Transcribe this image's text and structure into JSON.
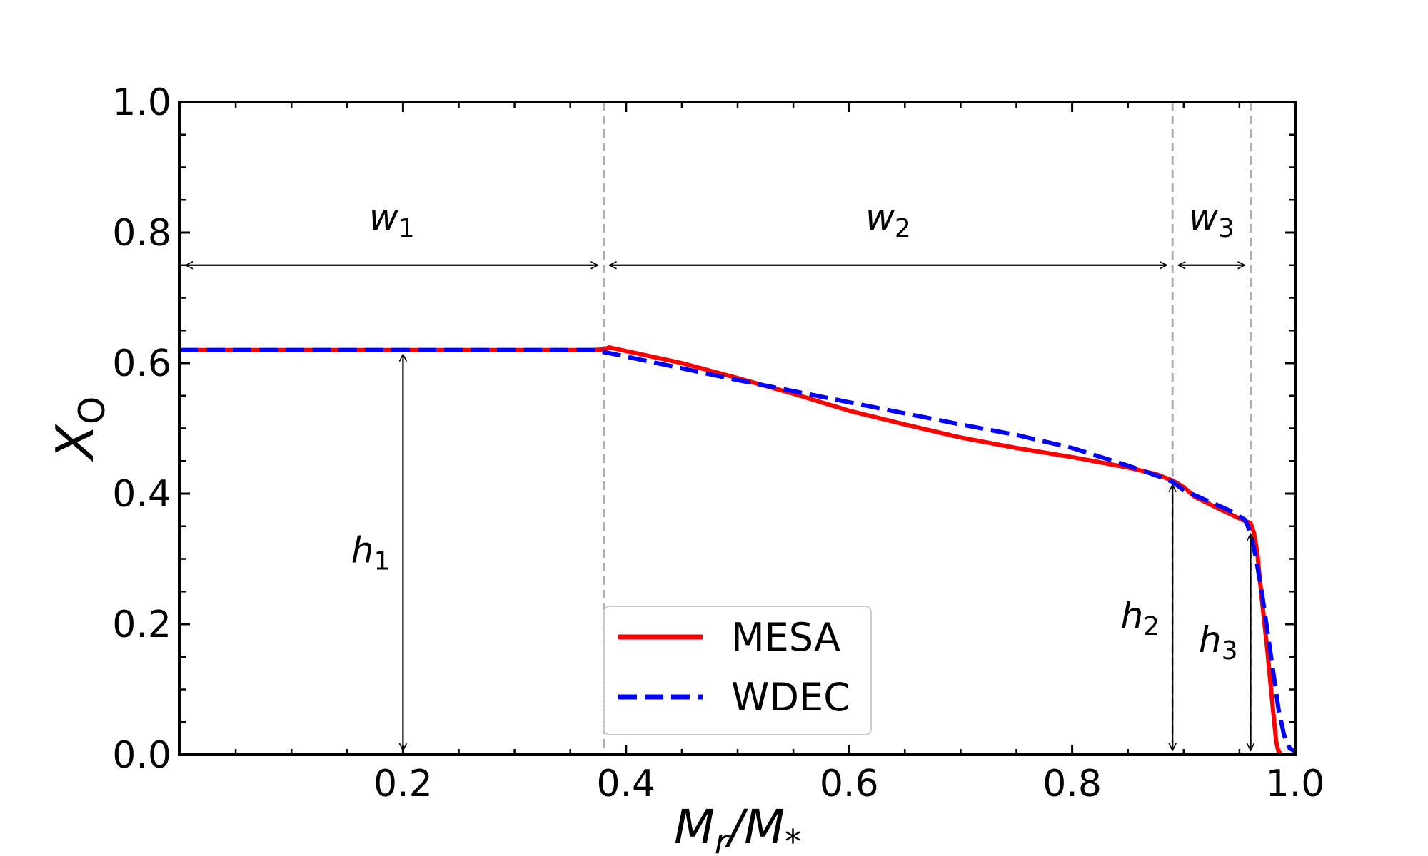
{
  "chart_data": {
    "type": "line",
    "xlabel": {
      "main": "M",
      "sub1": "r",
      "slash": "/M",
      "sub2": "*"
    },
    "ylabel": {
      "main": "X",
      "sub": "O"
    },
    "xlim": [
      0.0,
      1.0
    ],
    "ylim": [
      0.0,
      1.0
    ],
    "x_ticks": [
      0.2,
      0.4,
      0.6,
      0.8,
      1.0
    ],
    "x_tick_labels": [
      "0.2",
      "0.4",
      "0.6",
      "0.8",
      "1.0"
    ],
    "y_ticks": [
      0.0,
      0.2,
      0.4,
      0.6,
      0.8,
      1.0
    ],
    "y_tick_labels": [
      "0.0",
      "0.2",
      "0.4",
      "0.6",
      "0.8",
      "1.0"
    ],
    "grid": false,
    "series": [
      {
        "name": "MESA",
        "color": "#ff0000",
        "style": "solid",
        "x": [
          0.0,
          0.1,
          0.2,
          0.3,
          0.37,
          0.38,
          0.385,
          0.45,
          0.5,
          0.55,
          0.6,
          0.65,
          0.7,
          0.75,
          0.8,
          0.85,
          0.875,
          0.89,
          0.9,
          0.91,
          0.93,
          0.95,
          0.955,
          0.96,
          0.963,
          0.966,
          0.97,
          0.975,
          0.98,
          0.983,
          0.985,
          0.988,
          0.992,
          1.0
        ],
        "y": [
          0.62,
          0.62,
          0.62,
          0.62,
          0.62,
          0.621,
          0.624,
          0.6,
          0.577,
          0.553,
          0.527,
          0.506,
          0.486,
          0.47,
          0.456,
          0.44,
          0.43,
          0.42,
          0.41,
          0.395,
          0.378,
          0.362,
          0.358,
          0.355,
          0.34,
          0.31,
          0.24,
          0.16,
          0.07,
          0.02,
          0.005,
          0.0,
          0.0,
          0.0
        ]
      },
      {
        "name": "WDEC",
        "color": "#0000ff",
        "style": "dashed",
        "x": [
          0.0,
          0.1,
          0.2,
          0.3,
          0.37,
          0.38,
          0.4,
          0.45,
          0.5,
          0.55,
          0.6,
          0.65,
          0.7,
          0.75,
          0.8,
          0.85,
          0.88,
          0.89,
          0.9,
          0.92,
          0.94,
          0.955,
          0.96,
          0.965,
          0.97,
          0.975,
          0.98,
          0.985,
          0.99,
          0.995,
          1.0
        ],
        "y": [
          0.62,
          0.62,
          0.62,
          0.62,
          0.62,
          0.617,
          0.61,
          0.592,
          0.574,
          0.557,
          0.54,
          0.523,
          0.506,
          0.49,
          0.47,
          0.443,
          0.425,
          0.418,
          0.405,
          0.39,
          0.375,
          0.36,
          0.34,
          0.3,
          0.25,
          0.19,
          0.13,
          0.07,
          0.03,
          0.01,
          0.005
        ]
      }
    ],
    "vlines": [
      0.38,
      0.89,
      0.96
    ],
    "annotations": {
      "widths": [
        {
          "label": "w",
          "sub": "1",
          "x_start": 0.0,
          "x_end": 0.38,
          "y": 0.75
        },
        {
          "label": "w",
          "sub": "2",
          "x_start": 0.38,
          "x_end": 0.89,
          "y": 0.75
        },
        {
          "label": "w",
          "sub": "3",
          "x_start": 0.89,
          "x_end": 0.96,
          "y": 0.75
        }
      ],
      "heights": [
        {
          "label": "h",
          "sub": "1",
          "x": 0.2,
          "y_top": 0.62,
          "y_bottom": 0.0
        },
        {
          "label": "h",
          "sub": "2",
          "x": 0.89,
          "y_top": 0.42,
          "y_bottom": 0.0
        },
        {
          "label": "h",
          "sub": "3",
          "x": 0.96,
          "y_top": 0.345,
          "y_bottom": 0.0
        }
      ]
    },
    "legend": {
      "location": "lower-center",
      "entries": [
        "MESA",
        "WDEC"
      ]
    }
  }
}
